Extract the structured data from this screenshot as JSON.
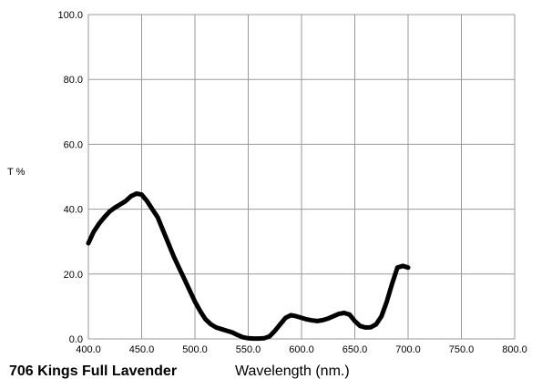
{
  "chart_data": {
    "type": "line",
    "title": "706 Kings Full Lavender",
    "xlabel": "Wavelength (nm.)",
    "ylabel": "T %",
    "xlim": [
      400,
      800
    ],
    "ylim": [
      0,
      100
    ],
    "grid": true,
    "x_ticks": [
      "400.0",
      "450.0",
      "500.0",
      "550.0",
      "600.0",
      "650.0",
      "700.0",
      "750.0",
      "800.0"
    ],
    "y_ticks": [
      "0.0",
      "20.0",
      "40.0",
      "60.0",
      "80.0",
      "100.0"
    ],
    "colors": {
      "line": "#000000",
      "grid": "#999999",
      "background": "#ffffff"
    },
    "series": [
      {
        "x": [
          400,
          405,
          410,
          415,
          420,
          425,
          430,
          435,
          440,
          445,
          450,
          455,
          460,
          465,
          470,
          475,
          480,
          485,
          490,
          495,
          500,
          505,
          510,
          515,
          520,
          525,
          530,
          535,
          540,
          545,
          550,
          555,
          560,
          565,
          570,
          575,
          580,
          585,
          590,
          595,
          600,
          605,
          610,
          615,
          620,
          625,
          630,
          635,
          640,
          645,
          650,
          655,
          660,
          665,
          670,
          675,
          680,
          685,
          690,
          695,
          700
        ],
        "y": [
          29.5,
          33.0,
          35.5,
          37.5,
          39.3,
          40.5,
          41.5,
          42.5,
          44.0,
          44.8,
          44.5,
          42.5,
          40.0,
          37.5,
          33.5,
          29.5,
          25.5,
          22.0,
          18.5,
          15.0,
          11.5,
          8.5,
          6.0,
          4.5,
          3.5,
          3.0,
          2.5,
          2.0,
          1.2,
          0.5,
          0.2,
          0.1,
          0.1,
          0.2,
          0.8,
          2.5,
          4.5,
          6.5,
          7.3,
          7.0,
          6.5,
          6.0,
          5.7,
          5.5,
          5.8,
          6.3,
          7.0,
          7.7,
          8.0,
          7.5,
          5.5,
          4.0,
          3.5,
          3.6,
          4.5,
          7.0,
          11.5,
          17.0,
          22.0,
          22.5,
          22.0
        ]
      }
    ]
  }
}
